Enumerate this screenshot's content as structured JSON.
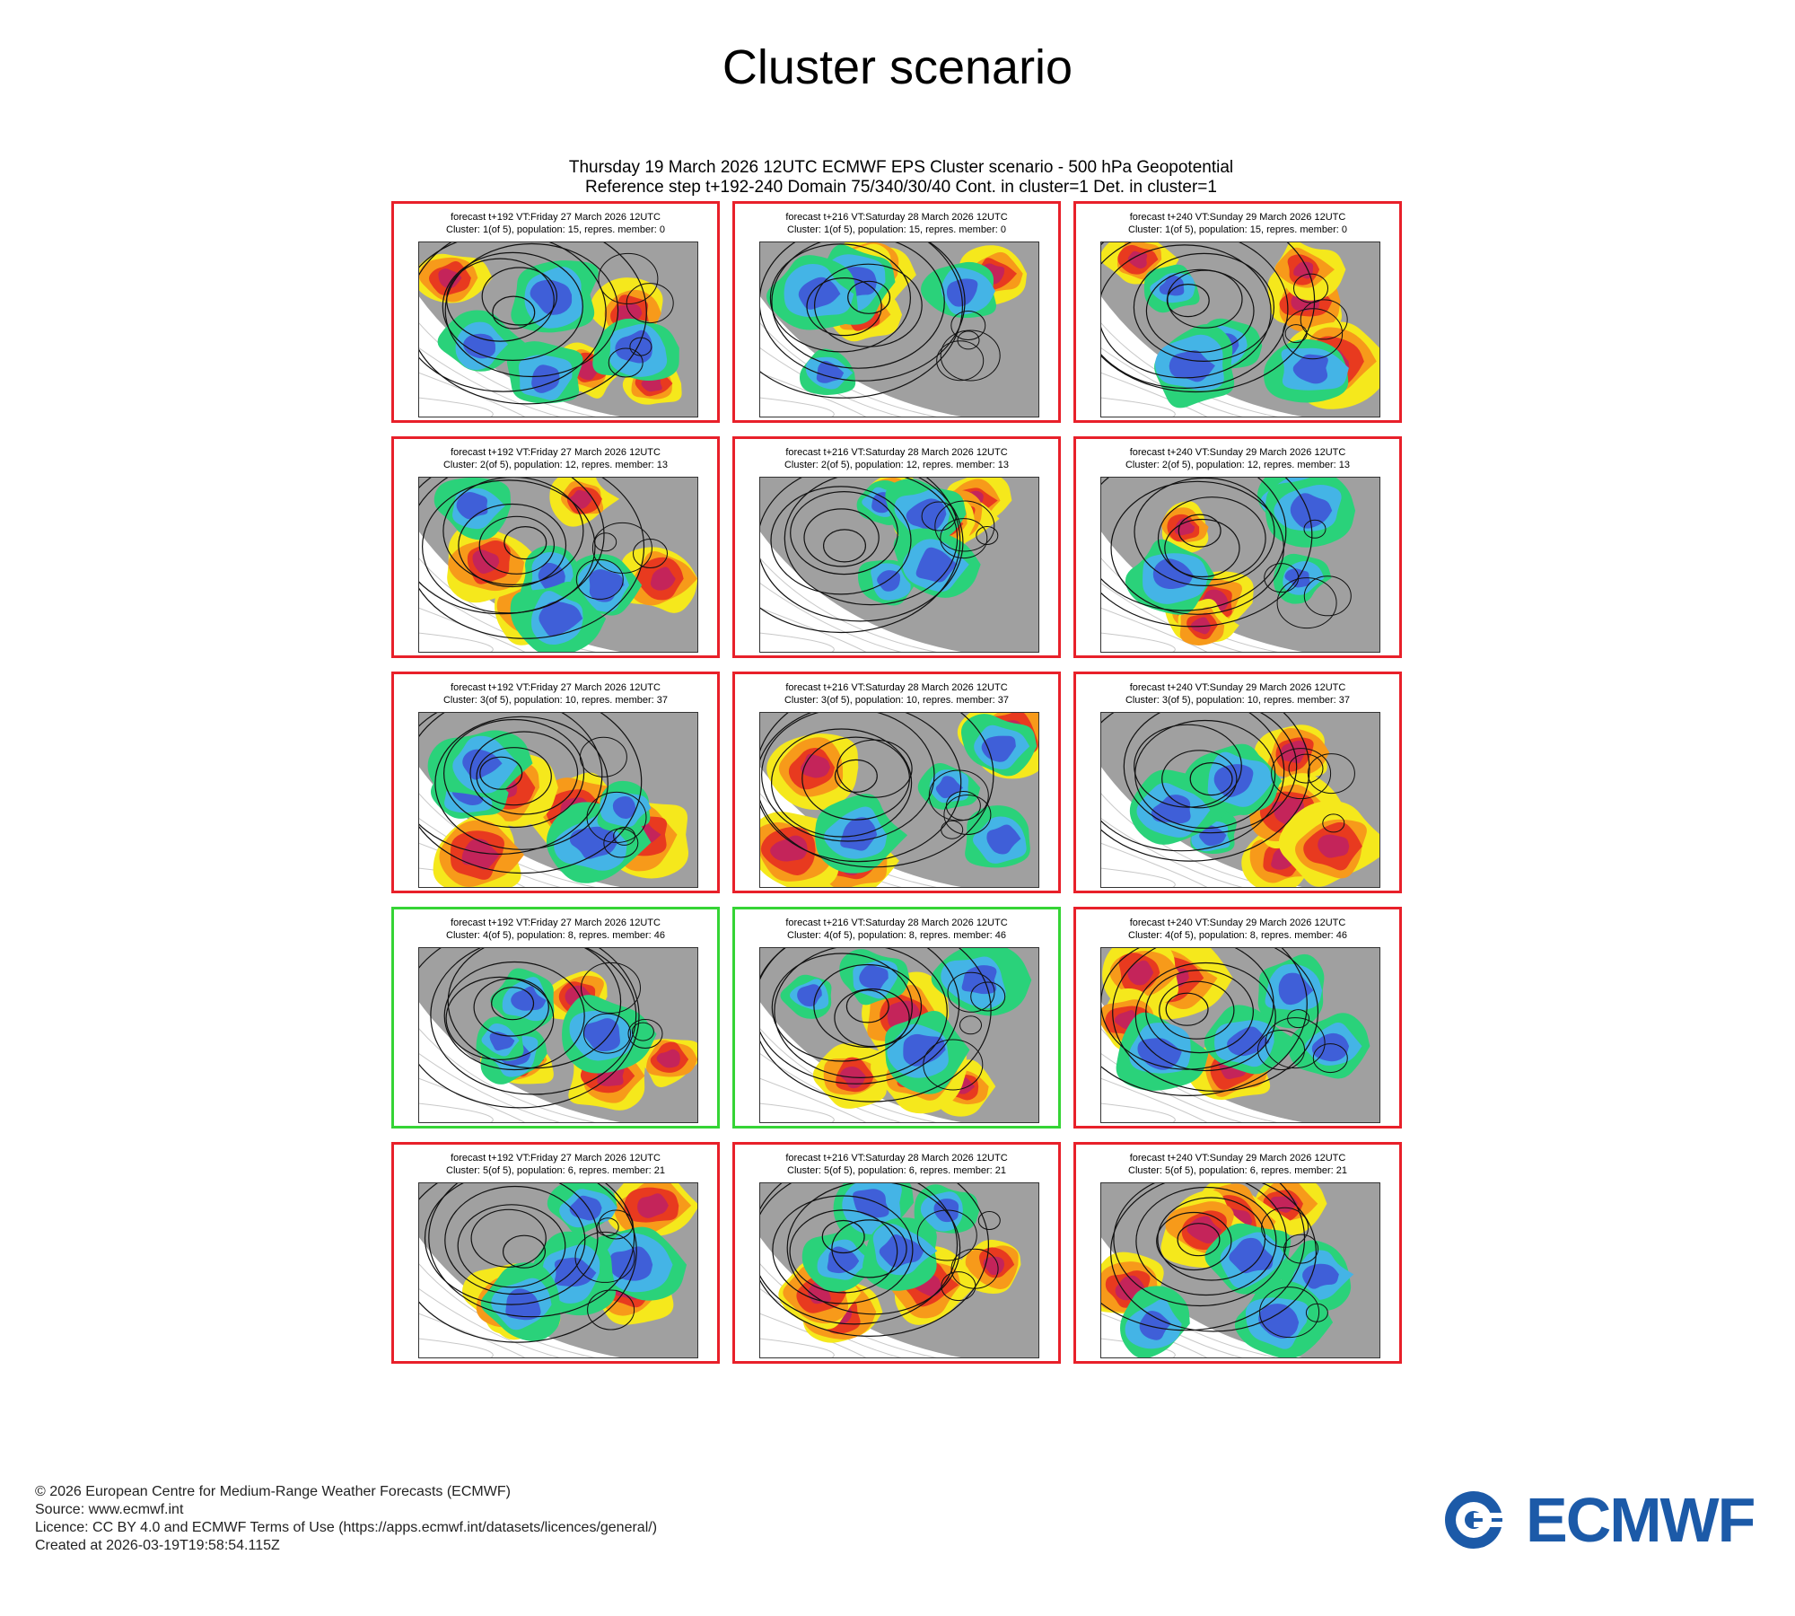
{
  "page": {
    "title": "Cluster scenario"
  },
  "chart": {
    "header_line1": "Thursday 19 March 2026 12UTC ECMWF EPS Cluster scenario - 500 hPa Geopotential",
    "header_line2": "Reference step t+192-240 Domain 75/340/30/40 Cont. in cluster=1 Det. in cluster=1"
  },
  "columns": [
    "forecast t+192 VT:Friday 27 March 2026 12UTC",
    "forecast t+216 VT:Saturday 28 March 2026 12UTC",
    "forecast t+240 VT:Sunday 29 March 2026 12UTC"
  ],
  "clusters": [
    {
      "label": "Cluster: 1(of 5), population: 15, repres. member: 0",
      "selected": [
        false,
        false,
        false
      ]
    },
    {
      "label": "Cluster: 2(of 5), population: 12, repres. member: 13",
      "selected": [
        false,
        false,
        false
      ]
    },
    {
      "label": "Cluster: 3(of 5), population: 10, repres. member: 37",
      "selected": [
        false,
        false,
        false
      ]
    },
    {
      "label": "Cluster: 4(of 5), population: 8, repres. member: 46",
      "selected": [
        true,
        true,
        false
      ]
    },
    {
      "label": "Cluster: 5(of 5), population: 6, repres. member: 21",
      "selected": [
        false,
        false,
        false
      ]
    }
  ],
  "colors": {
    "border_default": "#e8202a",
    "border_selected": "#35d435",
    "anomaly_strong_neg": "#3f5fd8",
    "anomaly_neg": "#44b4e6",
    "anomaly_weak_neg": "#2ad27a",
    "anomaly_weak_pos": "#f5e81c",
    "anomaly_pos": "#f79a1a",
    "anomaly_strong_pos": "#e83a1f",
    "anomaly_extreme_pos": "#c4245a",
    "land_mask": "#a0a0a0",
    "logo_blue": "#1c5aa8"
  },
  "footer": {
    "copyright": "© 2026 European Centre for Medium-Range Weather Forecasts (ECMWF)",
    "source": "Source: www.ecmwf.int",
    "licence": "Licence: CC BY 4.0 and ECMWF Terms of Use (https://apps.ecmwf.int/datasets/licences/general/)",
    "created": "Created at 2026-03-19T19:58:54.115Z"
  },
  "logo": {
    "text": "ECMWF",
    "icon": "ecmwf-logo-icon"
  }
}
